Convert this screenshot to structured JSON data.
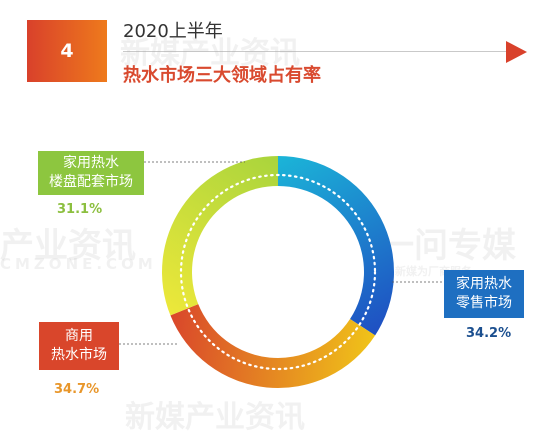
{
  "header": {
    "badge_number": "4",
    "subtitle": "2020上半年",
    "title": "热水市场三大领域占有率"
  },
  "watermarks": [
    "新媒产业资讯",
    "产业资讯",
    "CMZONE.COM",
    "一问专媒",
    "新媒为厂商服务",
    "新媒产业资讯"
  ],
  "chart_data": {
    "type": "pie",
    "style": "donut",
    "title": "热水市场三大领域占有率",
    "subtitle": "2020上半年",
    "slices": [
      {
        "name": "家用热水零售市场",
        "label_lines": [
          "家用热水",
          "零售市场"
        ],
        "value": 34.2,
        "value_label": "34.2%",
        "label_color": "#1e6fc1",
        "gradient": [
          "#1bb5d8",
          "#1f4fc2"
        ]
      },
      {
        "name": "商用热水市场",
        "label_lines": [
          "商用",
          "热水市场"
        ],
        "value": 34.7,
        "value_label": "34.7%",
        "label_color": "#d9462b",
        "gradient": [
          "#f0c419",
          "#d9462b"
        ]
      },
      {
        "name": "家用热水楼盘配套市场",
        "label_lines": [
          "家用热水",
          "楼盘配套市场"
        ],
        "value": 31.1,
        "value_label": "31.1%",
        "label_color": "#8dc63f",
        "gradient": [
          "#ede83a",
          "#a9d43c"
        ]
      }
    ]
  },
  "colors": {
    "accent_red": "#d9412b",
    "accent_orange": "#ee7a1c",
    "retail_blue": "#1e6fc1",
    "building_green": "#8dc63f",
    "commercial_orange": "#e8962a"
  }
}
